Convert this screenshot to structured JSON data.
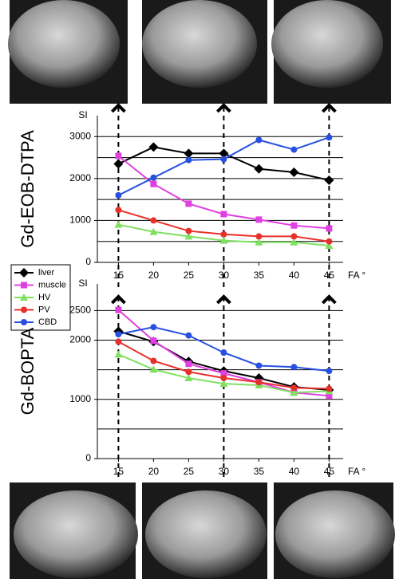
{
  "chart_data": [
    {
      "type": "line",
      "title": "Gd-EOB-DTPA",
      "ylabel": "SI",
      "xlabel": "FA °",
      "x": [
        15,
        20,
        25,
        30,
        35,
        40,
        45
      ],
      "xlim": [
        12,
        47
      ],
      "xticks": [
        15,
        20,
        25,
        30,
        35,
        40,
        45
      ],
      "ylim": [
        0,
        3500
      ],
      "yticks": [
        0,
        1000,
        2000,
        3000
      ],
      "y_minor_ticks": [
        500,
        1500,
        2500
      ],
      "grid": true,
      "legend": "left",
      "series": [
        {
          "name": "liver",
          "color": "#000000",
          "marker": "diamond",
          "values": [
            2350,
            2750,
            2600,
            2600,
            2230,
            2150,
            1960
          ]
        },
        {
          "name": "muscle",
          "color": "#e040e0",
          "marker": "square",
          "values": [
            2540,
            1870,
            1400,
            1150,
            1020,
            880,
            810
          ]
        },
        {
          "name": "HV",
          "color": "#80e060",
          "marker": "triangle",
          "values": [
            900,
            730,
            620,
            520,
            480,
            480,
            400
          ]
        },
        {
          "name": "PV",
          "color": "#e8302a",
          "marker": "circle",
          "values": [
            1250,
            1000,
            750,
            670,
            620,
            620,
            500
          ]
        },
        {
          "name": "CBD",
          "color": "#2850e0",
          "marker": "circle",
          "values": [
            1600,
            2020,
            2440,
            2460,
            2920,
            2690,
            2980
          ]
        }
      ]
    },
    {
      "type": "line",
      "title": "Gd-BOPTA",
      "ylabel": "SI",
      "xlabel": "FA °",
      "x": [
        15,
        20,
        25,
        30,
        35,
        40,
        45
      ],
      "xlim": [
        12,
        47
      ],
      "xticks": [
        15,
        20,
        25,
        30,
        35,
        40,
        45
      ],
      "ylim": [
        0,
        2950
      ],
      "yticks": [
        0,
        1000,
        2000,
        2500
      ],
      "y_minor_ticks": [
        500,
        1500
      ],
      "grid": true,
      "series": [
        {
          "color": "#000000",
          "marker": "diamond",
          "values": [
            2150,
            1975,
            1640,
            1480,
            1360,
            1210,
            1160
          ]
        },
        {
          "color": "#e040e0",
          "marker": "square",
          "values": [
            2510,
            1990,
            1600,
            1440,
            1290,
            1115,
            1060
          ]
        },
        {
          "color": "#80e060",
          "marker": "triangle",
          "values": [
            1760,
            1505,
            1360,
            1265,
            1240,
            1115,
            1140
          ]
        },
        {
          "color": "#e8302a",
          "marker": "circle",
          "values": [
            1975,
            1650,
            1465,
            1360,
            1290,
            1195,
            1180
          ]
        },
        {
          "color": "#2850e0",
          "marker": "circle",
          "values": [
            2100,
            2220,
            2080,
            1790,
            1570,
            1545,
            1480
          ]
        }
      ]
    }
  ]
}
